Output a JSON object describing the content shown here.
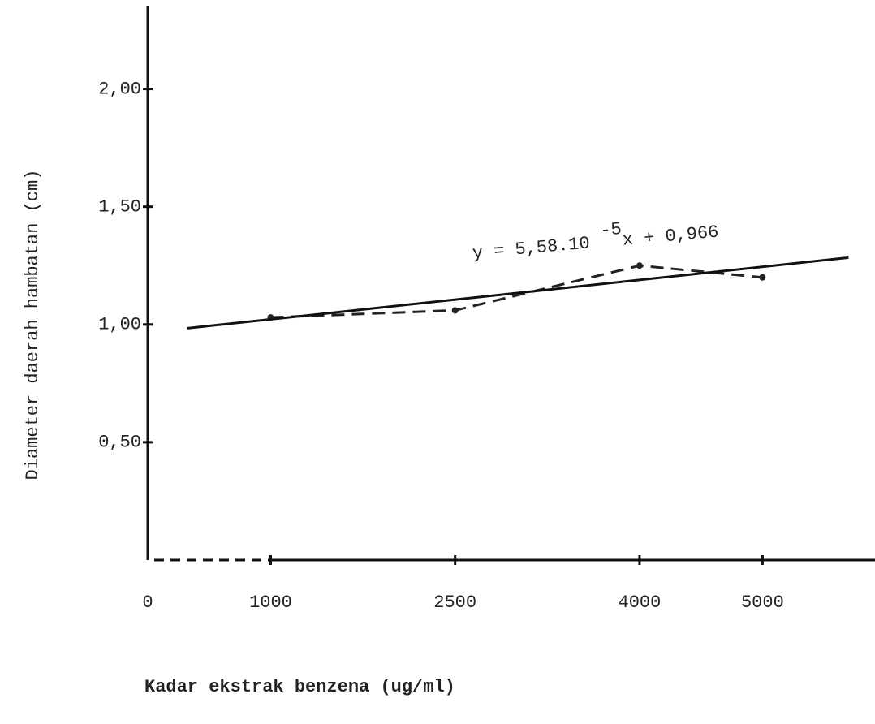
{
  "chart_data": {
    "type": "line",
    "y_label": "Diameter daerah hambatan (cm)",
    "x_label": "Kadar ekstrak benzena (ug/ml)",
    "annotation": {
      "base": "y = 5,58.10",
      "exponent": "-5",
      "rest": "x + 0,966"
    },
    "x": [
      1000,
      2500,
      4000,
      5000
    ],
    "series": [
      {
        "color": "#222222",
        "style": "dashed",
        "values": [
          1.03,
          1.06,
          1.25,
          1.2
        ]
      }
    ],
    "fit_line": {
      "x": [
        320,
        5700
      ],
      "values": [
        0.984,
        1.284
      ],
      "color": "#111111"
    },
    "xlim": [
      0,
      5915
    ],
    "ylim": [
      0,
      2.35
    ],
    "xticks": [
      0,
      1000,
      2500,
      4000,
      5000
    ],
    "yticks": [
      {
        "value": 0.5,
        "label": "0,50"
      },
      {
        "value": 1,
        "label": "1,00"
      },
      {
        "value": 1.5,
        "label": "1,50"
      },
      {
        "value": 2,
        "label": "2,00"
      }
    ],
    "grid": false
  }
}
